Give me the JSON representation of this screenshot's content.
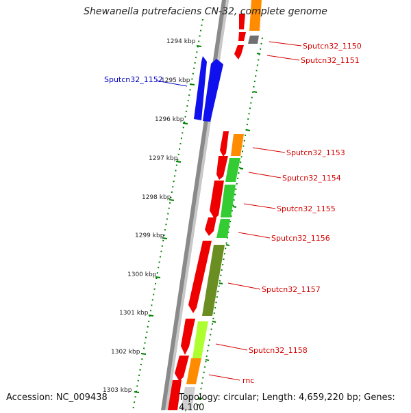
{
  "title": "Shewanella putrefaciens CN-32, complete genome",
  "accession": "Accession: NC_009438",
  "topology": "Topology: circular; Length: 4,659,220 bp; Genes: 4,100",
  "ticks": [
    "1294 kbp",
    "1295 kbp",
    "1296 kbp",
    "1297 kbp",
    "1298 kbp",
    "1299 kbp",
    "1300 kbp",
    "1301 kbp",
    "1302 kbp",
    "1303 kbp"
  ],
  "genes": [
    "Sputcn32_1150",
    "Sputcn32_1151",
    "Sputcn32_1152",
    "Sputcn32_1153",
    "Sputcn32_1154",
    "Sputcn32_1155",
    "Sputcn32_1156",
    "Sputcn32_1157",
    "Sputcn32_1158",
    "rnc"
  ],
  "colors": {
    "cds": "#ee0000",
    "minus_strand_gene": "#1010ee",
    "cog_orange": "#ff8c00",
    "cog_green": "#33cc33",
    "cog_olive": "#6b8e23",
    "cog_lime": "#adff2f",
    "cog_gray": "#707070",
    "tick": "#008000",
    "backbone": "#888888"
  }
}
